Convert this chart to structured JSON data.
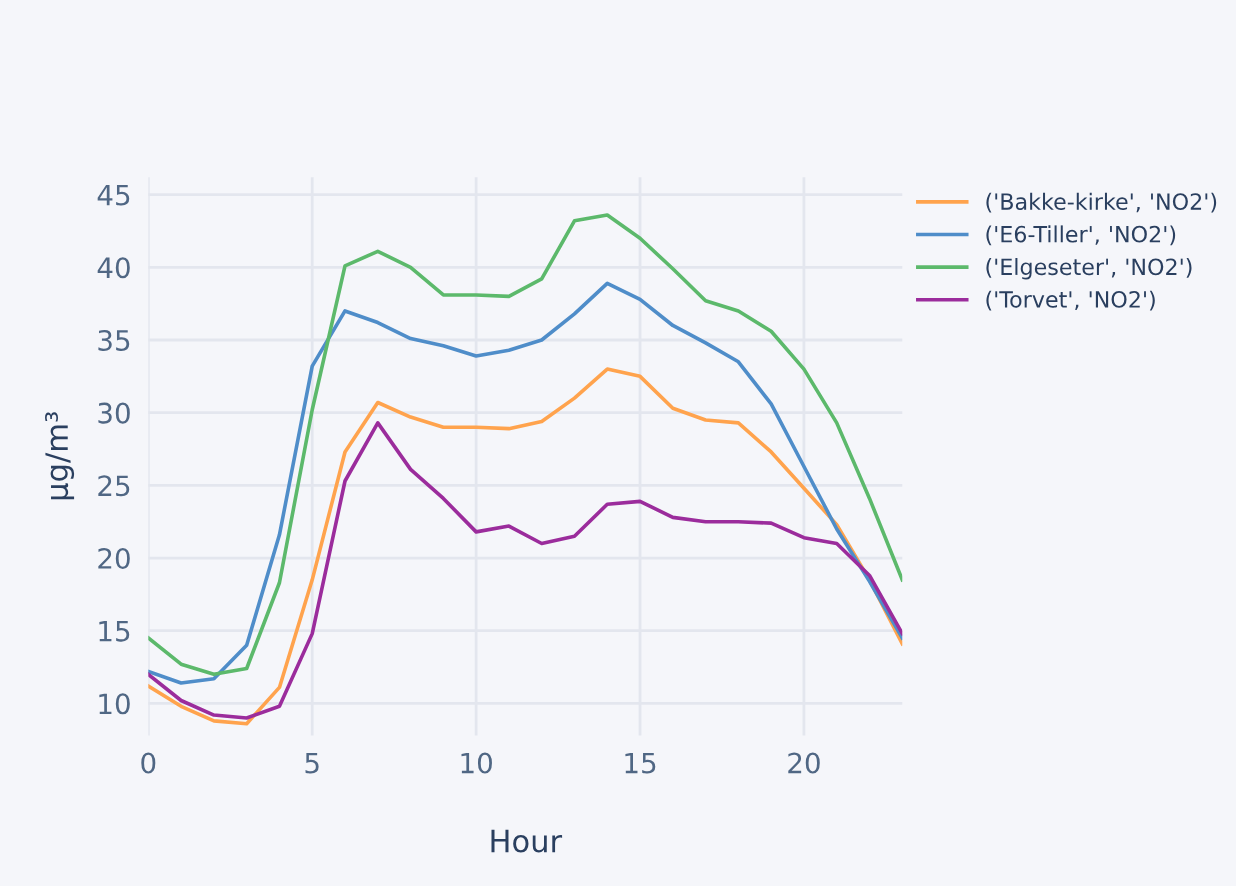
{
  "chart_data": {
    "type": "line",
    "xlabel": "Hour",
    "ylabel": "µg/m³",
    "x": [
      0,
      1,
      2,
      3,
      4,
      5,
      6,
      7,
      8,
      9,
      10,
      11,
      12,
      13,
      14,
      15,
      16,
      17,
      18,
      19,
      20,
      21,
      22,
      23
    ],
    "xlim": [
      0,
      23
    ],
    "xticks": [
      0,
      5,
      10,
      15,
      20
    ],
    "ylim": [
      7.8,
      46.2
    ],
    "yticks": [
      10,
      15,
      20,
      25,
      30,
      35,
      40,
      45
    ],
    "grid": true,
    "legend": "top right",
    "marker": "none",
    "line_style": "solid",
    "series": [
      {
        "name": "('Bakke-kirke', 'NO2')",
        "color": "#ffa34d",
        "values": [
          11.2,
          9.8,
          8.8,
          8.6,
          11.1,
          18.5,
          27.3,
          30.7,
          29.7,
          29.0,
          29.0,
          28.9,
          29.4,
          31.0,
          33.0,
          32.5,
          30.3,
          29.5,
          29.3,
          27.3,
          24.8,
          22.3,
          18.5,
          14.1
        ]
      },
      {
        "name": "('E6-Tiller', 'NO2')",
        "color": "#4f8dc9",
        "values": [
          12.2,
          11.4,
          11.7,
          14.0,
          21.6,
          33.2,
          37.0,
          36.2,
          35.1,
          34.6,
          33.9,
          34.3,
          35.0,
          36.8,
          38.9,
          37.8,
          36.0,
          34.8,
          33.5,
          30.6,
          26.3,
          22.0,
          18.4,
          14.5
        ]
      },
      {
        "name": "('Elgeseter', 'NO2')",
        "color": "#5cb96b",
        "values": [
          14.5,
          12.7,
          12.0,
          12.4,
          18.3,
          30.2,
          40.1,
          41.1,
          40.0,
          38.1,
          38.1,
          38.0,
          39.2,
          43.2,
          43.6,
          42.0,
          39.9,
          37.7,
          37.0,
          35.6,
          33.0,
          29.3,
          24.1,
          18.5
        ]
      },
      {
        "name": "('Torvet', 'NO2')",
        "color": "#9b2c9c",
        "values": [
          12.0,
          10.2,
          9.2,
          9.0,
          9.8,
          14.8,
          25.3,
          29.3,
          26.1,
          24.1,
          21.8,
          22.2,
          21.0,
          21.5,
          23.7,
          23.9,
          22.8,
          22.5,
          22.5,
          22.4,
          21.4,
          21.0,
          18.8,
          14.8
        ]
      }
    ]
  }
}
